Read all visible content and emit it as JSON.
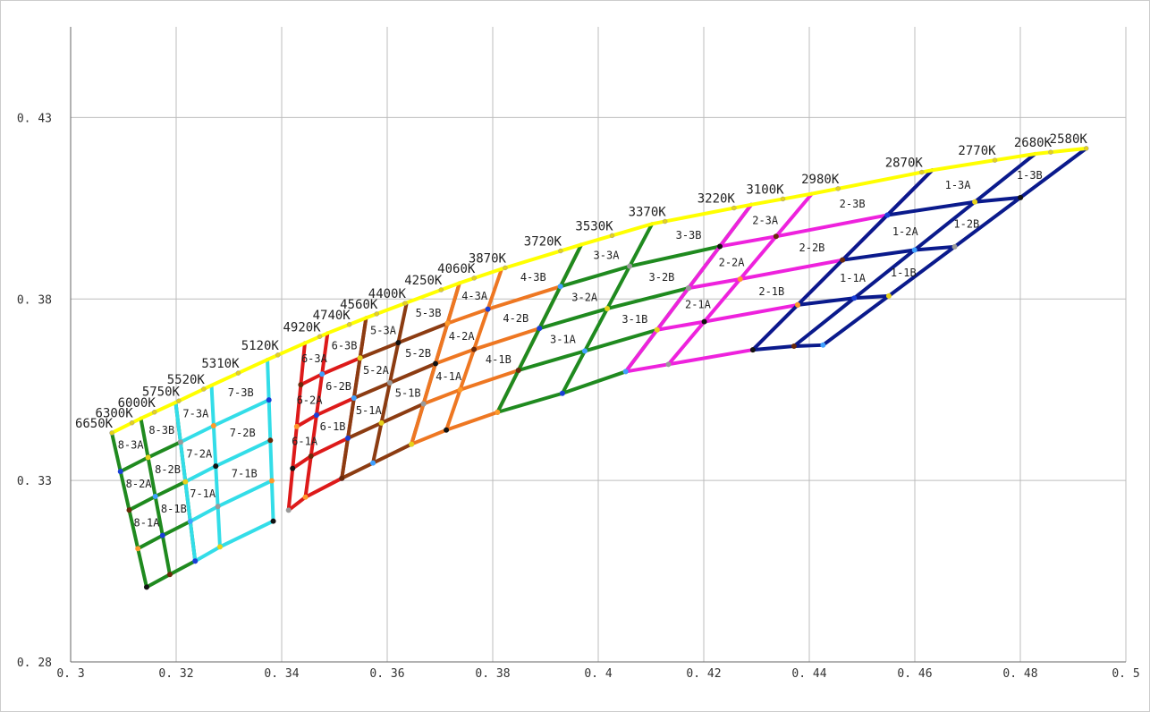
{
  "chart_data": {
    "type": "line",
    "title": "",
    "xlabel": "",
    "ylabel": "",
    "xlim": [
      0.3,
      0.5
    ],
    "ylim": [
      0.28,
      0.455
    ],
    "grid": true,
    "x_ticks": [
      "0.3",
      "0.32",
      "0.34",
      "0.36",
      "0.38",
      "0.4",
      "0.42",
      "0.44",
      "0.46",
      "0.48",
      "0.5"
    ],
    "y_ticks": [
      "0.28",
      "0.33",
      "0.38",
      "0.43"
    ],
    "locus_color": "#ffff00",
    "cct_labels": [
      "6650K",
      "6300K",
      "6000K",
      "5750K",
      "5520K",
      "5310K",
      "5120K",
      "4920K",
      "4740K",
      "4560K",
      "4400K",
      "4250K",
      "4060K",
      "3870K",
      "3720K",
      "3530K",
      "3370K",
      "3220K",
      "3100K",
      "2980K",
      "2870K",
      "2770K",
      "2680K",
      "2580K"
    ],
    "groups": [
      {
        "id": "8",
        "color": "#1f8a1f",
        "top": [
          [
            0.3078,
            0.3431
          ],
          [
            0.3133,
            0.3471
          ],
          [
            0.3199,
            0.3515
          ]
        ],
        "bottom": [
          [
            0.3144,
            0.3006
          ],
          [
            0.3188,
            0.3041
          ],
          [
            0.3236,
            0.3078
          ]
        ]
      },
      {
        "id": "7",
        "color": "#33dde8",
        "top": [
          [
            0.3199,
            0.3515
          ],
          [
            0.3267,
            0.3562
          ],
          [
            0.3373,
            0.3633
          ]
        ],
        "bottom": [
          [
            0.3236,
            0.3078
          ],
          [
            0.3283,
            0.3117
          ],
          [
            0.3384,
            0.3188
          ]
        ]
      },
      {
        "id": "6",
        "color": "#dd1a1a",
        "top": [
          [
            0.3444,
            0.3679
          ],
          [
            0.3487,
            0.3706
          ],
          [
            0.356,
            0.3748
          ]
        ],
        "bottom": [
          [
            0.3413,
            0.3218
          ],
          [
            0.3445,
            0.3254
          ],
          [
            0.3514,
            0.3306
          ]
        ]
      },
      {
        "id": "5",
        "color": "#8c3c12",
        "top": [
          [
            0.356,
            0.3748
          ],
          [
            0.3637,
            0.379
          ],
          [
            0.3737,
            0.3844
          ]
        ],
        "bottom": [
          [
            0.3514,
            0.3306
          ],
          [
            0.3573,
            0.3348
          ],
          [
            0.3646,
            0.34
          ]
        ]
      },
      {
        "id": "4",
        "color": "#ee7722",
        "top": [
          [
            0.3737,
            0.3844
          ],
          [
            0.3817,
            0.3883
          ],
          [
            0.3968,
            0.395
          ]
        ],
        "bottom": [
          [
            0.3646,
            0.34
          ],
          [
            0.3712,
            0.3439
          ],
          [
            0.3809,
            0.3488
          ]
        ]
      },
      {
        "id": "3",
        "color": "#1f8a1f",
        "top": [
          [
            0.3968,
            0.395
          ],
          [
            0.4102,
            0.4007
          ],
          [
            0.429,
            0.406
          ]
        ],
        "bottom": [
          [
            0.3809,
            0.3488
          ],
          [
            0.3932,
            0.354
          ],
          [
            0.4052,
            0.36
          ]
        ]
      },
      {
        "id": "2",
        "color": "#ee22dd",
        "top": [
          [
            0.429,
            0.406
          ],
          [
            0.4405,
            0.409
          ],
          [
            0.4633,
            0.4155
          ]
        ],
        "bottom": [
          [
            0.4052,
            0.36
          ],
          [
            0.4133,
            0.362
          ],
          [
            0.4293,
            0.366
          ]
        ]
      },
      {
        "id": "1",
        "color": "#0a1a8c",
        "top": [
          [
            0.4633,
            0.4155
          ],
          [
            0.4828,
            0.42
          ],
          [
            0.4925,
            0.4215
          ]
        ],
        "bottom": [
          [
            0.4293,
            0.366
          ],
          [
            0.4371,
            0.367
          ],
          [
            0.4426,
            0.3673
          ]
        ]
      }
    ]
  }
}
